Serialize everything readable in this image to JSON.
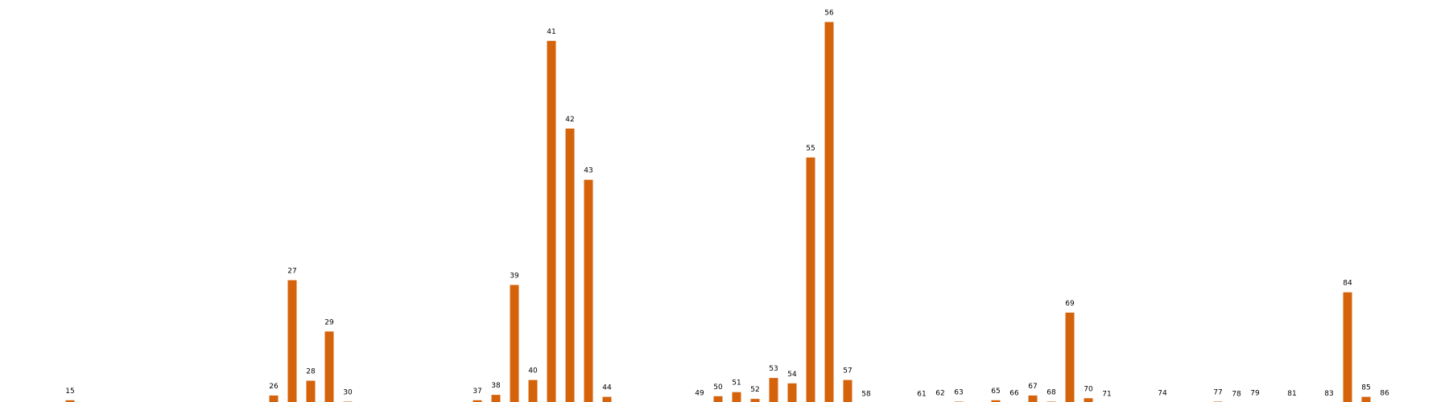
{
  "chart_data": {
    "type": "bar",
    "title": "",
    "xlabel": "",
    "ylabel": "",
    "ylim": [
      0,
      57
    ],
    "grid": false,
    "legend": "none",
    "bar_color": "#d4630c",
    "categories": [
      "15",
      "26",
      "27",
      "28",
      "29",
      "30",
      "37",
      "38",
      "39",
      "40",
      "41",
      "42",
      "43",
      "44",
      "49",
      "50",
      "51",
      "52",
      "53",
      "54",
      "55",
      "56",
      "57",
      "58",
      "61",
      "62",
      "63",
      "65",
      "66",
      "67",
      "68",
      "69",
      "70",
      "71",
      "74",
      "77",
      "78",
      "79",
      "81",
      "83",
      "84",
      "85",
      "86"
    ],
    "x": [
      15,
      26,
      27,
      28,
      29,
      30,
      37,
      38,
      39,
      40,
      41,
      42,
      43,
      44,
      49,
      50,
      51,
      52,
      53,
      54,
      55,
      56,
      57,
      58,
      61,
      62,
      63,
      65,
      66,
      67,
      68,
      69,
      70,
      71,
      74,
      77,
      78,
      79,
      81,
      83,
      84,
      85,
      86
    ],
    "values": [
      0.5,
      1.2,
      18.3,
      3.4,
      10.7,
      0.3,
      0.5,
      1.3,
      17.6,
      3.5,
      53.8,
      40.8,
      33.2,
      1.0,
      0.15,
      1.1,
      1.7,
      0.7,
      3.8,
      3.0,
      36.5,
      56.6,
      3.5,
      0.05,
      0.05,
      0.2,
      0.3,
      0.5,
      0.15,
      1.2,
      0.3,
      13.5,
      0.8,
      0.05,
      0.15,
      0.3,
      0.05,
      0.15,
      0.1,
      0.1,
      16.5,
      1.0,
      0.15
    ]
  }
}
